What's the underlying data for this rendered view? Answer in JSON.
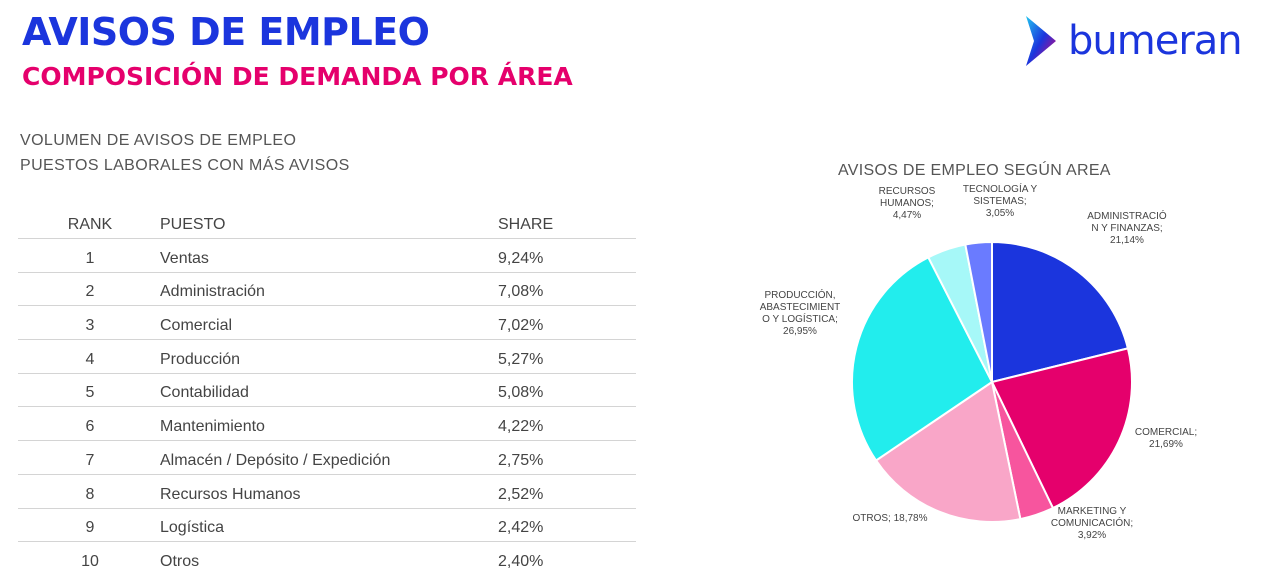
{
  "header": {
    "title": "AVISOS DE EMPLEO",
    "subtitle": "COMPOSICIÓN DE DEMANDA POR ÁREA"
  },
  "brand": {
    "name": "bumeran",
    "color": "#1b35dd"
  },
  "section": {
    "line1": "VOLUMEN DE AVISOS DE EMPLEO",
    "line2": "PUESTOS LABORALES CON MÁS AVISOS"
  },
  "table": {
    "headers": {
      "rank": "RANK",
      "puesto": "PUESTO",
      "share": "SHARE"
    },
    "rows": [
      {
        "rank": "1",
        "puesto": "Ventas",
        "share": "9,24%"
      },
      {
        "rank": "2",
        "puesto": "Administración",
        "share": "7,08%"
      },
      {
        "rank": "3",
        "puesto": "Comercial",
        "share": "7,02%"
      },
      {
        "rank": "4",
        "puesto": "Producción",
        "share": "5,27%"
      },
      {
        "rank": "5",
        "puesto": "Contabilidad",
        "share": "5,08%"
      },
      {
        "rank": "6",
        "puesto": "Mantenimiento",
        "share": "4,22%"
      },
      {
        "rank": "7",
        "puesto": "Almacén / Depósito / Expedición",
        "share": "2,75%"
      },
      {
        "rank": "8",
        "puesto": "Recursos Humanos",
        "share": "2,52%"
      },
      {
        "rank": "9",
        "puesto": "Logística",
        "share": "2,42%"
      },
      {
        "rank": "10",
        "puesto": "Otros",
        "share": "2,40%"
      }
    ]
  },
  "chart_data": {
    "type": "pie",
    "title": "AVISOS DE EMPLEO SEGÚN AREA",
    "slices": [
      {
        "label": [
          "ADMINISTRACIÓ",
          "N Y FINANZAS;",
          "21,14%"
        ],
        "value": 21.14,
        "color": "#1b35dd"
      },
      {
        "label": [
          "COMERCIAL;",
          "21,69%"
        ],
        "value": 21.69,
        "color": "#e5006c"
      },
      {
        "label": [
          "MARKETING Y",
          "COMUNICACIÓN;",
          "3,92%"
        ],
        "value": 3.92,
        "color": "#f7559e"
      },
      {
        "label": [
          "OTROS; 18,78%"
        ],
        "value": 18.78,
        "color": "#f9a6c8"
      },
      {
        "label": [
          "PRODUCCIÓN,",
          "ABASTECIMIENT",
          "O Y LOGÍSTICA;",
          "26,95%"
        ],
        "value": 26.95,
        "color": "#22eded"
      },
      {
        "label": [
          "RECURSOS",
          "HUMANOS;",
          "4,47%"
        ],
        "value": 4.47,
        "color": "#a6f8f8"
      },
      {
        "label": [
          "TECNOLOGÍA Y",
          "SISTEMAS;",
          "3,05%"
        ],
        "value": 3.05,
        "color": "#6a7bff"
      }
    ]
  }
}
